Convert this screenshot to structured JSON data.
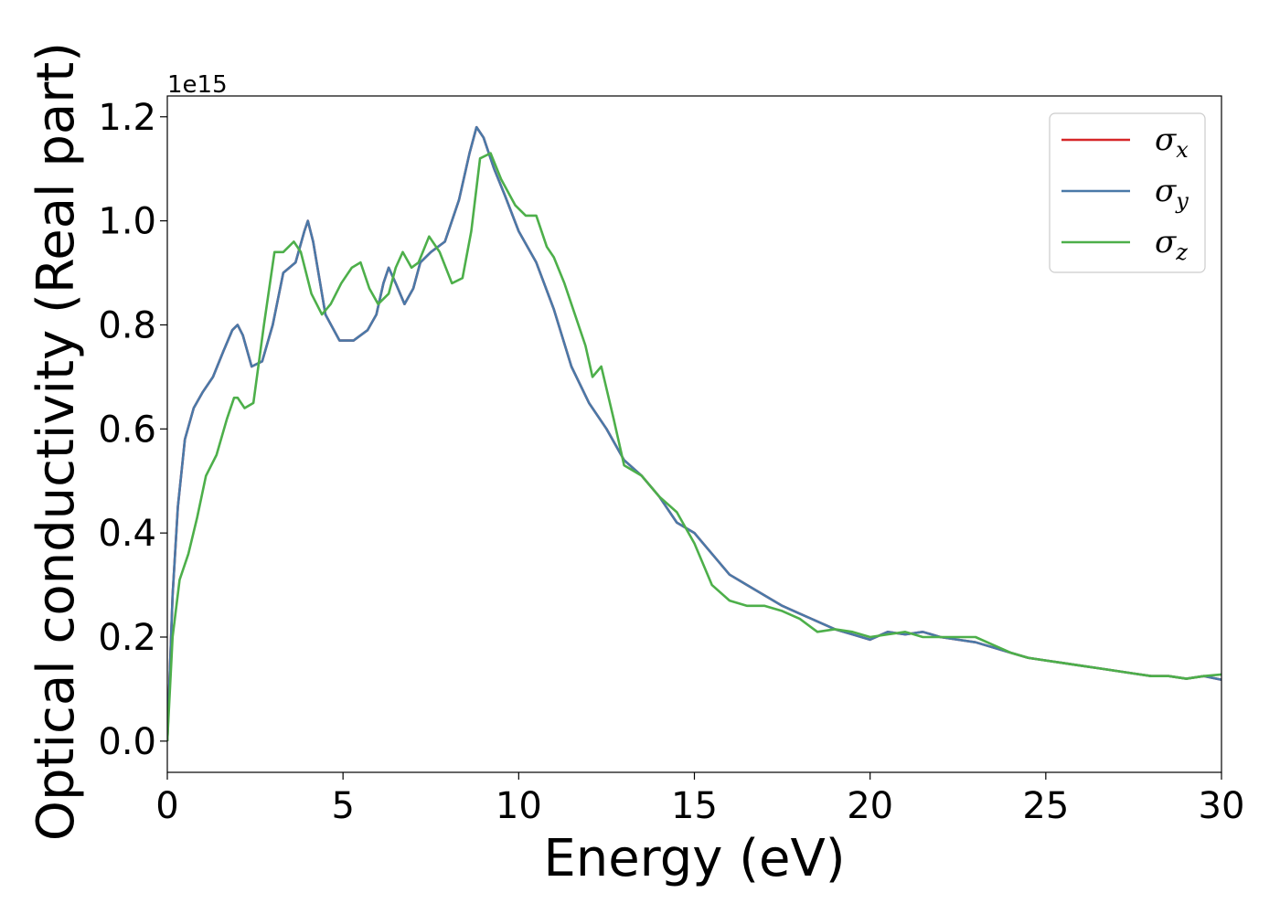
{
  "chart_data": {
    "type": "line",
    "title": "",
    "xlabel": "Energy (eV)",
    "ylabel": "Optical conductivity (Real part)",
    "y_offset_label": "1e15",
    "xlim": [
      0,
      30
    ],
    "ylim": [
      -0.06,
      1.24
    ],
    "xticks": [
      0,
      5,
      10,
      15,
      20,
      25,
      30
    ],
    "yticks": [
      0.0,
      0.2,
      0.4,
      0.6,
      0.8,
      1.0,
      1.2
    ],
    "xtick_labels": [
      "0",
      "5",
      "10",
      "15",
      "20",
      "25",
      "30"
    ],
    "ytick_labels": [
      "0.0",
      "0.2",
      "0.4",
      "0.6",
      "0.8",
      "1.0",
      "1.2"
    ],
    "grid": false,
    "legend_position": "top-right",
    "series": [
      {
        "name": "σx",
        "symbol": "σ",
        "sub": "x",
        "color": "#d62728",
        "x": [
          0,
          0.15,
          0.3,
          0.5,
          0.75,
          1.0,
          1.3,
          1.6,
          1.85,
          2.0,
          2.15,
          2.4,
          2.7,
          3.0,
          3.3,
          3.65,
          3.9,
          4.0,
          4.15,
          4.5,
          4.9,
          5.3,
          5.7,
          5.95,
          6.15,
          6.3,
          6.5,
          6.75,
          7.0,
          7.2,
          7.5,
          7.9,
          8.3,
          8.6,
          8.8,
          9.0,
          9.3,
          9.6,
          10.0,
          10.5,
          11.0,
          11.5,
          12.0,
          12.5,
          13.0,
          13.5,
          14.0,
          14.5,
          15.0,
          15.5,
          16.0,
          16.5,
          17.0,
          17.5,
          18.0,
          18.5,
          19.0,
          19.5,
          20.0,
          20.5,
          21.0,
          21.5,
          22.0,
          22.5,
          23.0,
          23.5,
          24.0,
          24.5,
          25.0,
          25.5,
          26.0,
          26.5,
          27.0,
          27.5,
          28.0,
          28.5,
          29.0,
          29.5,
          30.0
        ],
        "values": [
          0.0,
          0.28,
          0.45,
          0.58,
          0.64,
          0.67,
          0.7,
          0.75,
          0.79,
          0.8,
          0.78,
          0.72,
          0.73,
          0.8,
          0.9,
          0.92,
          0.98,
          1.0,
          0.96,
          0.82,
          0.77,
          0.77,
          0.79,
          0.82,
          0.88,
          0.91,
          0.88,
          0.84,
          0.87,
          0.92,
          0.94,
          0.96,
          1.04,
          1.13,
          1.18,
          1.16,
          1.1,
          1.05,
          0.98,
          0.92,
          0.83,
          0.72,
          0.65,
          0.6,
          0.54,
          0.51,
          0.47,
          0.42,
          0.4,
          0.36,
          0.32,
          0.3,
          0.28,
          0.26,
          0.245,
          0.23,
          0.215,
          0.205,
          0.195,
          0.21,
          0.205,
          0.21,
          0.2,
          0.195,
          0.19,
          0.18,
          0.17,
          0.16,
          0.155,
          0.15,
          0.145,
          0.14,
          0.135,
          0.13,
          0.125,
          0.125,
          0.12,
          0.125,
          0.118
        ]
      },
      {
        "name": "σy",
        "symbol": "σ",
        "sub": "y",
        "color": "#4a79a8",
        "x": [
          0,
          0.15,
          0.3,
          0.5,
          0.75,
          1.0,
          1.3,
          1.6,
          1.85,
          2.0,
          2.15,
          2.4,
          2.7,
          3.0,
          3.3,
          3.65,
          3.9,
          4.0,
          4.15,
          4.5,
          4.9,
          5.3,
          5.7,
          5.95,
          6.15,
          6.3,
          6.5,
          6.75,
          7.0,
          7.2,
          7.5,
          7.9,
          8.3,
          8.6,
          8.8,
          9.0,
          9.3,
          9.6,
          10.0,
          10.5,
          11.0,
          11.5,
          12.0,
          12.5,
          13.0,
          13.5,
          14.0,
          14.5,
          15.0,
          15.5,
          16.0,
          16.5,
          17.0,
          17.5,
          18.0,
          18.5,
          19.0,
          19.5,
          20.0,
          20.5,
          21.0,
          21.5,
          22.0,
          22.5,
          23.0,
          23.5,
          24.0,
          24.5,
          25.0,
          25.5,
          26.0,
          26.5,
          27.0,
          27.5,
          28.0,
          28.5,
          29.0,
          29.5,
          30.0
        ],
        "values": [
          0.0,
          0.28,
          0.45,
          0.58,
          0.64,
          0.67,
          0.7,
          0.75,
          0.79,
          0.8,
          0.78,
          0.72,
          0.73,
          0.8,
          0.9,
          0.92,
          0.98,
          1.0,
          0.96,
          0.82,
          0.77,
          0.77,
          0.79,
          0.82,
          0.88,
          0.91,
          0.88,
          0.84,
          0.87,
          0.92,
          0.94,
          0.96,
          1.04,
          1.13,
          1.18,
          1.16,
          1.1,
          1.05,
          0.98,
          0.92,
          0.83,
          0.72,
          0.65,
          0.6,
          0.54,
          0.51,
          0.47,
          0.42,
          0.4,
          0.36,
          0.32,
          0.3,
          0.28,
          0.26,
          0.245,
          0.23,
          0.215,
          0.205,
          0.195,
          0.21,
          0.205,
          0.21,
          0.2,
          0.195,
          0.19,
          0.18,
          0.17,
          0.16,
          0.155,
          0.15,
          0.145,
          0.14,
          0.135,
          0.13,
          0.125,
          0.125,
          0.12,
          0.125,
          0.118
        ]
      },
      {
        "name": "σz",
        "symbol": "σ",
        "sub": "z",
        "color": "#4daf4a",
        "x": [
          0,
          0.15,
          0.35,
          0.6,
          0.85,
          1.1,
          1.4,
          1.7,
          1.9,
          2.0,
          2.2,
          2.45,
          2.75,
          3.05,
          3.3,
          3.6,
          3.8,
          4.1,
          4.4,
          4.65,
          4.95,
          5.25,
          5.5,
          5.75,
          6.0,
          6.3,
          6.5,
          6.7,
          6.95,
          7.15,
          7.45,
          7.75,
          8.1,
          8.4,
          8.65,
          8.9,
          9.2,
          9.5,
          9.9,
          10.2,
          10.5,
          10.8,
          11.0,
          11.3,
          11.6,
          11.9,
          12.1,
          12.35,
          12.7,
          13.0,
          13.5,
          14.0,
          14.5,
          15.0,
          15.5,
          16.0,
          16.5,
          17.0,
          17.5,
          18.0,
          18.5,
          19.0,
          19.5,
          20.0,
          20.5,
          21.0,
          21.5,
          22.0,
          22.5,
          23.0,
          23.5,
          24.0,
          24.5,
          25.0,
          25.5,
          26.0,
          26.5,
          27.0,
          27.5,
          28.0,
          28.5,
          29.0,
          29.5,
          30.0
        ],
        "values": [
          0.0,
          0.2,
          0.31,
          0.36,
          0.43,
          0.51,
          0.55,
          0.62,
          0.66,
          0.66,
          0.64,
          0.65,
          0.8,
          0.94,
          0.94,
          0.96,
          0.94,
          0.86,
          0.82,
          0.84,
          0.88,
          0.91,
          0.92,
          0.87,
          0.84,
          0.86,
          0.91,
          0.94,
          0.91,
          0.92,
          0.97,
          0.94,
          0.88,
          0.89,
          0.98,
          1.12,
          1.13,
          1.08,
          1.03,
          1.01,
          1.01,
          0.95,
          0.93,
          0.88,
          0.82,
          0.76,
          0.7,
          0.72,
          0.62,
          0.53,
          0.51,
          0.47,
          0.44,
          0.38,
          0.3,
          0.27,
          0.26,
          0.26,
          0.25,
          0.235,
          0.21,
          0.215,
          0.21,
          0.2,
          0.205,
          0.21,
          0.2,
          0.2,
          0.2,
          0.2,
          0.185,
          0.17,
          0.16,
          0.155,
          0.15,
          0.145,
          0.14,
          0.135,
          0.13,
          0.125,
          0.125,
          0.12,
          0.125,
          0.128
        ]
      }
    ]
  }
}
